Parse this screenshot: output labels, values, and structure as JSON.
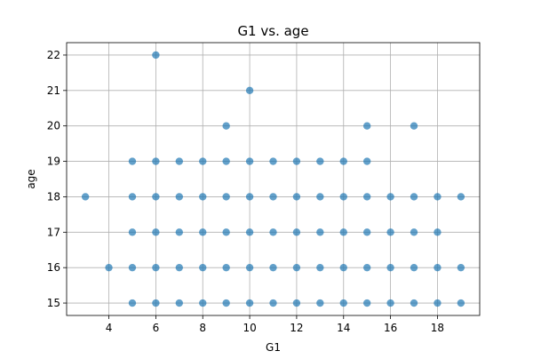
{
  "chart_data": {
    "type": "scatter",
    "title": "G1 vs. age",
    "xlabel": "G1",
    "ylabel": "age",
    "xlim": [
      2.2,
      19.8
    ],
    "ylim": [
      14.65,
      22.35
    ],
    "xticks": [
      4,
      6,
      8,
      10,
      12,
      14,
      16,
      18
    ],
    "yticks": [
      15,
      16,
      17,
      18,
      19,
      20,
      21,
      22
    ],
    "grid": true,
    "point_color": "#1f77b4",
    "points": [
      {
        "x": 3,
        "y": 18
      },
      {
        "x": 4,
        "y": 16
      },
      {
        "x": 5,
        "y": 15
      },
      {
        "x": 5,
        "y": 16
      },
      {
        "x": 5,
        "y": 17
      },
      {
        "x": 5,
        "y": 18
      },
      {
        "x": 5,
        "y": 19
      },
      {
        "x": 6,
        "y": 15
      },
      {
        "x": 6,
        "y": 16
      },
      {
        "x": 6,
        "y": 17
      },
      {
        "x": 6,
        "y": 18
      },
      {
        "x": 6,
        "y": 19
      },
      {
        "x": 6,
        "y": 22
      },
      {
        "x": 7,
        "y": 15
      },
      {
        "x": 7,
        "y": 16
      },
      {
        "x": 7,
        "y": 17
      },
      {
        "x": 7,
        "y": 18
      },
      {
        "x": 7,
        "y": 19
      },
      {
        "x": 8,
        "y": 15
      },
      {
        "x": 8,
        "y": 16
      },
      {
        "x": 8,
        "y": 17
      },
      {
        "x": 8,
        "y": 18
      },
      {
        "x": 8,
        "y": 19
      },
      {
        "x": 9,
        "y": 15
      },
      {
        "x": 9,
        "y": 16
      },
      {
        "x": 9,
        "y": 17
      },
      {
        "x": 9,
        "y": 18
      },
      {
        "x": 9,
        "y": 19
      },
      {
        "x": 9,
        "y": 20
      },
      {
        "x": 10,
        "y": 15
      },
      {
        "x": 10,
        "y": 16
      },
      {
        "x": 10,
        "y": 17
      },
      {
        "x": 10,
        "y": 18
      },
      {
        "x": 10,
        "y": 19
      },
      {
        "x": 10,
        "y": 21
      },
      {
        "x": 11,
        "y": 15
      },
      {
        "x": 11,
        "y": 16
      },
      {
        "x": 11,
        "y": 17
      },
      {
        "x": 11,
        "y": 18
      },
      {
        "x": 11,
        "y": 19
      },
      {
        "x": 12,
        "y": 15
      },
      {
        "x": 12,
        "y": 16
      },
      {
        "x": 12,
        "y": 17
      },
      {
        "x": 12,
        "y": 18
      },
      {
        "x": 12,
        "y": 19
      },
      {
        "x": 13,
        "y": 15
      },
      {
        "x": 13,
        "y": 16
      },
      {
        "x": 13,
        "y": 17
      },
      {
        "x": 13,
        "y": 18
      },
      {
        "x": 13,
        "y": 19
      },
      {
        "x": 14,
        "y": 15
      },
      {
        "x": 14,
        "y": 16
      },
      {
        "x": 14,
        "y": 17
      },
      {
        "x": 14,
        "y": 18
      },
      {
        "x": 14,
        "y": 19
      },
      {
        "x": 15,
        "y": 15
      },
      {
        "x": 15,
        "y": 16
      },
      {
        "x": 15,
        "y": 17
      },
      {
        "x": 15,
        "y": 18
      },
      {
        "x": 15,
        "y": 19
      },
      {
        "x": 15,
        "y": 20
      },
      {
        "x": 16,
        "y": 15
      },
      {
        "x": 16,
        "y": 16
      },
      {
        "x": 16,
        "y": 17
      },
      {
        "x": 16,
        "y": 18
      },
      {
        "x": 17,
        "y": 15
      },
      {
        "x": 17,
        "y": 16
      },
      {
        "x": 17,
        "y": 17
      },
      {
        "x": 17,
        "y": 18
      },
      {
        "x": 17,
        "y": 20
      },
      {
        "x": 18,
        "y": 15
      },
      {
        "x": 18,
        "y": 16
      },
      {
        "x": 18,
        "y": 17
      },
      {
        "x": 18,
        "y": 18
      },
      {
        "x": 19,
        "y": 15
      },
      {
        "x": 19,
        "y": 16
      },
      {
        "x": 19,
        "y": 18
      }
    ]
  }
}
